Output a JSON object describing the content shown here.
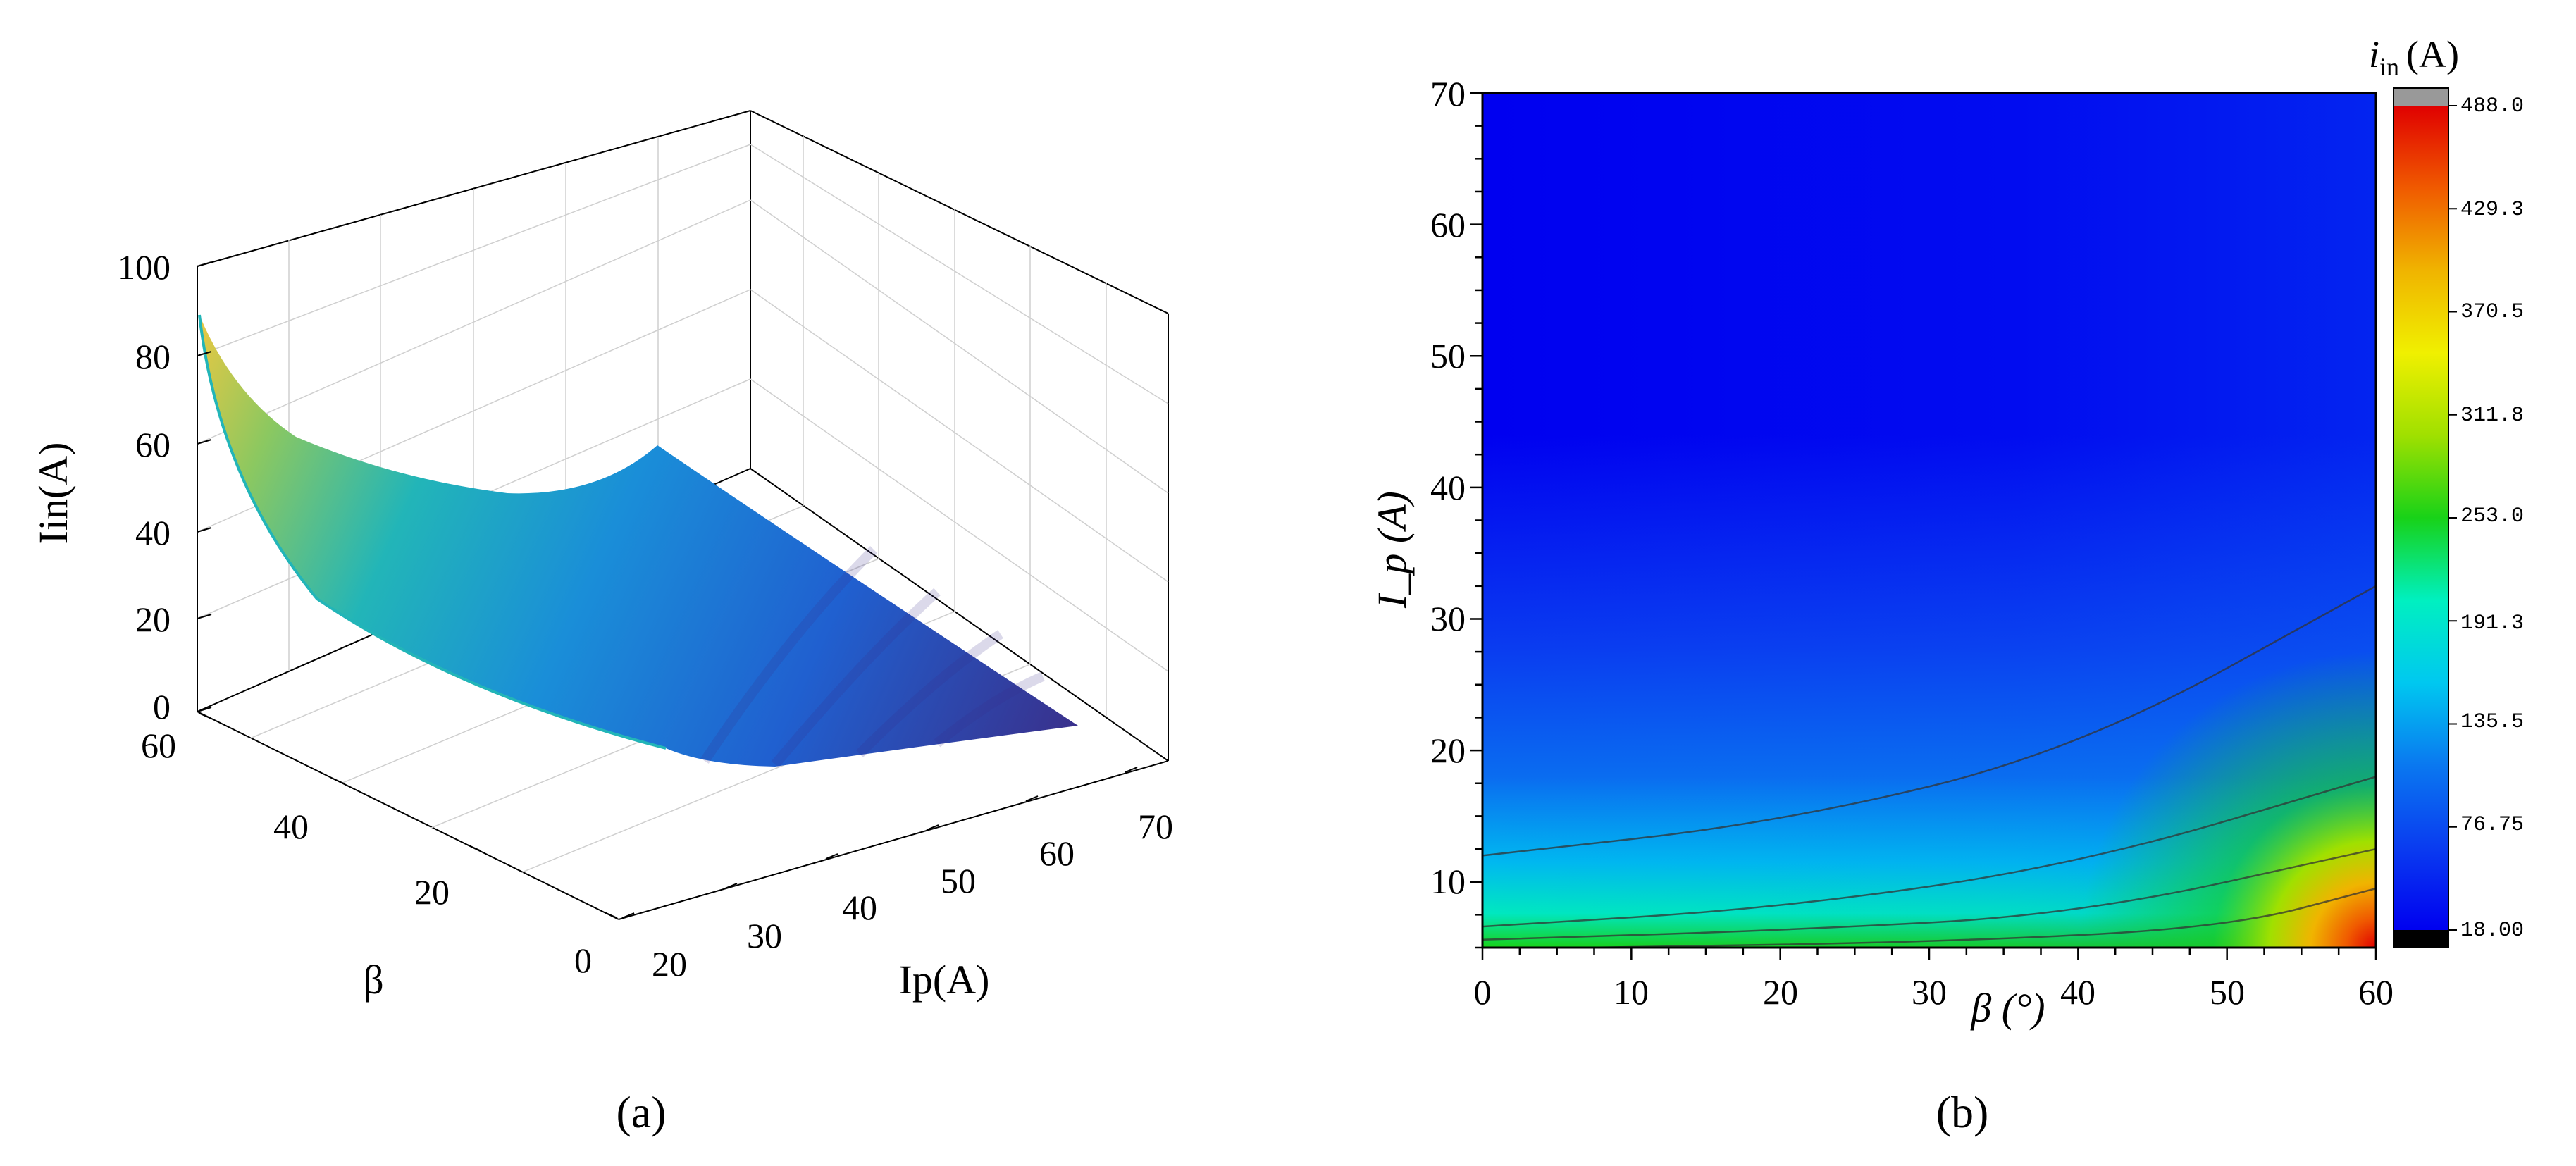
{
  "panel_a_label": "(a)",
  "panel_b_label": "(b)",
  "chart_data": [
    {
      "type": "surface3d",
      "panel": "(a)",
      "zlabel": "Iin(A)",
      "xlabel": "Ip(A)",
      "ylabel": "β",
      "x_ticks": [
        "20",
        "30",
        "40",
        "50",
        "60",
        "70"
      ],
      "y_ticks": [
        "0",
        "20",
        "40",
        "60"
      ],
      "z_ticks": [
        "0",
        "20",
        "40",
        "60",
        "80",
        "100"
      ],
      "xlim": [
        20,
        75
      ],
      "ylim": [
        0,
        60
      ],
      "zlim": [
        0,
        100
      ],
      "colormap": [
        "#3a2f8a",
        "#2060d0",
        "#1a8ed8",
        "#22b5b8",
        "#8cc860",
        "#f0c840"
      ],
      "corner_values": [
        {
          "ip": 20,
          "beta": 60,
          "iin": 88
        },
        {
          "ip": 20,
          "beta": 0,
          "iin": 64
        },
        {
          "ip": 75,
          "beta": 0,
          "iin": 10
        },
        {
          "ip": 75,
          "beta": 60,
          "iin": 10
        }
      ]
    },
    {
      "type": "heatmap",
      "panel": "(b)",
      "xlabel": "β (°)",
      "ylabel": "I_p (A)",
      "xlim": [
        0,
        60
      ],
      "ylim": [
        5,
        70
      ],
      "x_ticks": [
        "0",
        "10",
        "20",
        "30",
        "40",
        "50",
        "60"
      ],
      "y_ticks": [
        "10",
        "20",
        "30",
        "40",
        "50",
        "60",
        "70"
      ],
      "colorbar": {
        "title_base": "i",
        "title_sub": "in",
        "title_unit": "(A)",
        "ticks": [
          "18.00",
          "76.75",
          "135.5",
          "191.3",
          "253.0",
          "311.8",
          "370.5",
          "429.3",
          "488.0"
        ],
        "range": [
          18,
          488
        ],
        "colors": [
          "#0000f0",
          "#0a3cf0",
          "#0a78f0",
          "#00c8f0",
          "#00f0c0",
          "#18d218",
          "#a0e000",
          "#f0f000",
          "#f0b400",
          "#f05a00",
          "#e00000"
        ],
        "over_color": "#999999",
        "under_color": "#000000"
      },
      "contour_lines": [
        {
          "points": [
            [
              0,
              12
            ],
            [
              20,
              14.5
            ],
            [
              40,
              20
            ],
            [
              60,
              32.5
            ]
          ]
        },
        {
          "points": [
            [
              0,
              6.6
            ],
            [
              20,
              8
            ],
            [
              40,
              11.3
            ],
            [
              60,
              18
            ]
          ]
        },
        {
          "points": [
            [
              0,
              5.6
            ],
            [
              20,
              6.3
            ],
            [
              40,
              7.5
            ],
            [
              60,
              12.5
            ]
          ]
        },
        {
          "points": [
            [
              7,
              5
            ],
            [
              30,
              5.4
            ],
            [
              50,
              6.5
            ],
            [
              60,
              9.5
            ]
          ]
        }
      ]
    }
  ]
}
